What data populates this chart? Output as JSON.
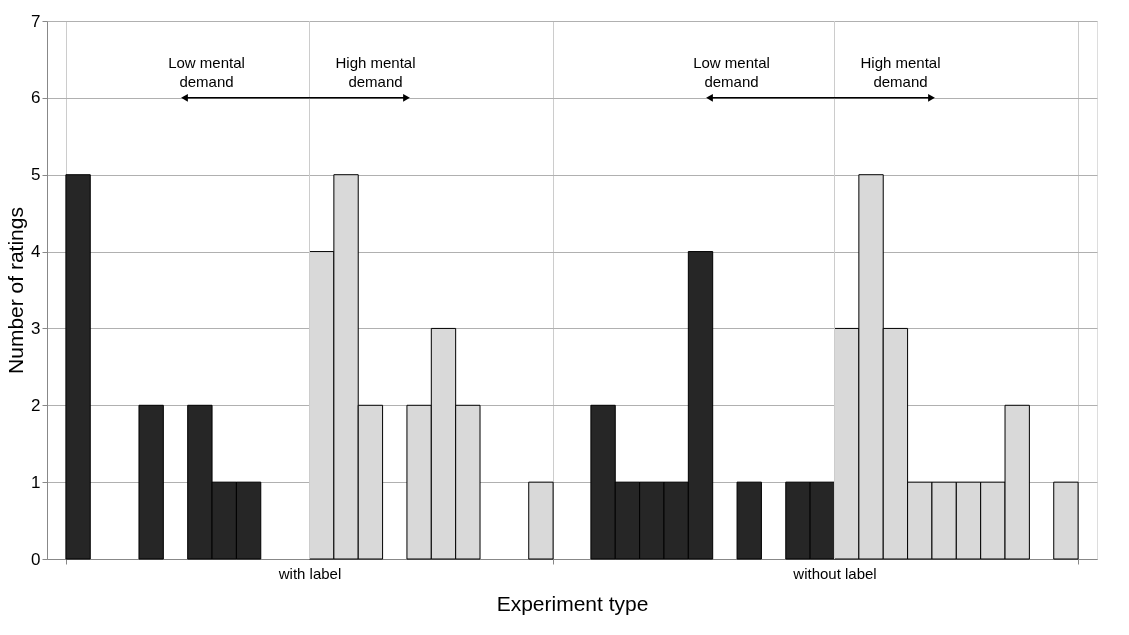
{
  "chart_data": {
    "type": "bar",
    "categories": [
      "with label",
      "without label"
    ],
    "xlabel": "Experiment type",
    "ylabel": "Number of ratings",
    "series": [
      {
        "color": "#262626",
        "values": [
          5,
          2
        ]
      },
      {
        "color": "#262626",
        "values": [
          0,
          1
        ]
      },
      {
        "color": "#262626",
        "values": [
          0,
          1
        ]
      },
      {
        "color": "#262626",
        "values": [
          2,
          1
        ]
      },
      {
        "color": "#262626",
        "values": [
          0,
          4
        ]
      },
      {
        "color": "#262626",
        "values": [
          2,
          0
        ]
      },
      {
        "color": "#262626",
        "values": [
          1,
          1
        ]
      },
      {
        "color": "#262626",
        "values": [
          1,
          0
        ]
      },
      {
        "color": "#262626",
        "values": [
          0,
          1
        ]
      },
      {
        "color": "#262626",
        "values": [
          0,
          1
        ]
      },
      {
        "color": "#d9d9d9",
        "values": [
          4,
          3
        ]
      },
      {
        "color": "#d9d9d9",
        "values": [
          5,
          5
        ]
      },
      {
        "color": "#d9d9d9",
        "values": [
          2,
          3
        ]
      },
      {
        "color": "#d9d9d9",
        "values": [
          0,
          1
        ]
      },
      {
        "color": "#d9d9d9",
        "values": [
          2,
          1
        ]
      },
      {
        "color": "#d9d9d9",
        "values": [
          3,
          1
        ]
      },
      {
        "color": "#d9d9d9",
        "values": [
          2,
          1
        ]
      },
      {
        "color": "#d9d9d9",
        "values": [
          0,
          2
        ]
      },
      {
        "color": "#d9d9d9",
        "values": [
          0,
          0
        ]
      },
      {
        "color": "#d9d9d9",
        "values": [
          1,
          1
        ]
      }
    ],
    "ylim": [
      0,
      7
    ],
    "yticks": [
      0,
      1,
      2,
      3,
      4,
      5,
      6,
      7
    ],
    "grid": true,
    "legend": false,
    "annotations": [
      "Low mental demand",
      "High mental demand",
      "Low mental demand",
      "High mental demand"
    ]
  }
}
